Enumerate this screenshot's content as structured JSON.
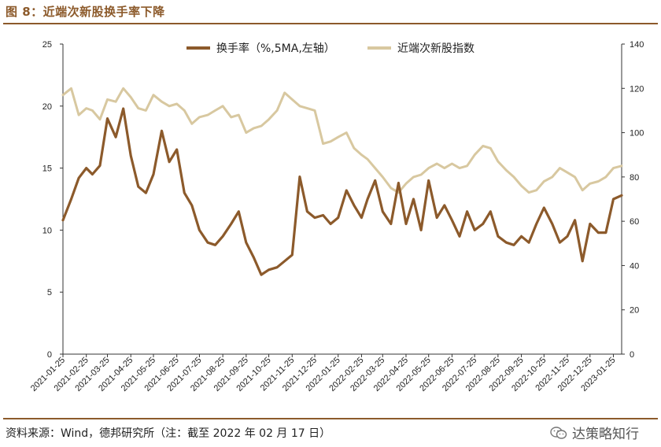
{
  "header": {
    "title": "图 8：近端次新股换手率下降"
  },
  "footer": {
    "source": "资料来源：Wind，德邦研究所（注：截至 2022 年 02 月 17 日）",
    "watermark": "达策略知行"
  },
  "colors": {
    "turnover": "#8c5a2b",
    "index": "#d8c8a0",
    "rule": "#8c5a2b"
  },
  "chart_data": {
    "type": "line",
    "legend_position": "top",
    "grid": false,
    "x_tick_labels": [
      "2021-01-25",
      "2021-02-25",
      "2021-03-25",
      "2021-04-25",
      "2021-05-25",
      "2021-06-25",
      "2021-07-25",
      "2021-08-25",
      "2021-09-25",
      "2021-10-25",
      "2021-11-25",
      "2021-12-25",
      "2022-01-25",
      "2022-02-25",
      "2022-03-25",
      "2022-04-25",
      "2022-05-25",
      "2022-06-25",
      "2022-07-25",
      "2022-08-25",
      "2022-09-25",
      "2022-10-25",
      "2022-11-25",
      "2022-12-25",
      "2023-01-25"
    ],
    "y_left": {
      "min": 0,
      "max": 25,
      "ticks": [
        "0",
        "5",
        "10",
        "15",
        "20",
        "25"
      ]
    },
    "y_right": {
      "min": 0,
      "max": 140,
      "ticks": [
        "0",
        "20",
        "40",
        "60",
        "80",
        "100",
        "120",
        "140"
      ]
    },
    "series": [
      {
        "name": "换手率（%,5MA,左轴）",
        "axis": "left",
        "color": "#8c5a2b",
        "x": [
          "2021-01-25",
          "2021-02-05",
          "2021-02-15",
          "2021-02-25",
          "2021-03-05",
          "2021-03-15",
          "2021-03-25",
          "2021-04-05",
          "2021-04-15",
          "2021-04-25",
          "2021-05-05",
          "2021-05-15",
          "2021-05-25",
          "2021-06-05",
          "2021-06-15",
          "2021-06-25",
          "2021-07-05",
          "2021-07-15",
          "2021-07-25",
          "2021-08-05",
          "2021-08-15",
          "2021-08-25",
          "2021-09-05",
          "2021-09-15",
          "2021-09-25",
          "2021-10-05",
          "2021-10-15",
          "2021-10-25",
          "2021-11-05",
          "2021-11-15",
          "2021-11-25",
          "2021-12-05",
          "2021-12-15",
          "2021-12-25",
          "2022-01-05",
          "2022-01-15",
          "2022-01-25",
          "2022-02-05",
          "2022-02-15",
          "2022-02-25",
          "2022-03-05",
          "2022-03-15",
          "2022-03-25",
          "2022-04-05",
          "2022-04-15",
          "2022-04-25",
          "2022-05-05",
          "2022-05-15",
          "2022-05-25",
          "2022-06-05",
          "2022-06-15",
          "2022-06-25",
          "2022-07-05",
          "2022-07-15",
          "2022-07-25",
          "2022-08-05",
          "2022-08-15",
          "2022-08-25",
          "2022-09-05",
          "2022-09-15",
          "2022-09-25",
          "2022-10-05",
          "2022-10-15",
          "2022-10-25",
          "2022-11-05",
          "2022-11-15",
          "2022-11-25",
          "2022-12-05",
          "2022-12-15",
          "2022-12-25",
          "2023-01-05",
          "2023-01-15",
          "2023-01-25",
          "2023-02-05"
        ],
        "values": [
          10.8,
          12.5,
          14.2,
          15.0,
          14.5,
          15.2,
          19.0,
          17.5,
          19.8,
          16.0,
          13.5,
          13.0,
          14.5,
          18.0,
          15.5,
          16.5,
          13.0,
          12.0,
          10.0,
          9.0,
          8.8,
          9.5,
          10.5,
          11.5,
          9.0,
          7.8,
          6.4,
          6.8,
          7.0,
          7.5,
          8.0,
          14.3,
          11.5,
          11.0,
          11.2,
          10.5,
          11.0,
          13.2,
          12.0,
          11.0,
          12.5,
          14.0,
          11.5,
          10.5,
          13.8,
          10.5,
          12.5,
          10.0,
          14.0,
          11.0,
          12.0,
          10.8,
          9.5,
          11.5,
          10.0,
          10.5,
          11.5,
          9.5,
          9.0,
          8.8,
          9.5,
          9.0,
          10.5,
          11.8,
          10.5,
          9.0,
          9.5,
          10.8,
          7.5,
          10.5,
          9.8,
          9.8,
          12.5,
          12.8
        ]
      },
      {
        "name": "近端次新股指数",
        "axis": "right",
        "color": "#d8c8a0",
        "x": [
          "2021-01-25",
          "2021-02-05",
          "2021-02-15",
          "2021-02-25",
          "2021-03-05",
          "2021-03-15",
          "2021-03-25",
          "2021-04-05",
          "2021-04-15",
          "2021-04-25",
          "2021-05-05",
          "2021-05-15",
          "2021-05-25",
          "2021-06-05",
          "2021-06-15",
          "2021-06-25",
          "2021-07-05",
          "2021-07-15",
          "2021-07-25",
          "2021-08-05",
          "2021-08-15",
          "2021-08-25",
          "2021-09-05",
          "2021-09-15",
          "2021-09-25",
          "2021-10-05",
          "2021-10-15",
          "2021-10-25",
          "2021-11-05",
          "2021-11-15",
          "2021-11-25",
          "2021-12-05",
          "2021-12-15",
          "2021-12-25",
          "2022-01-05",
          "2022-01-15",
          "2022-01-25",
          "2022-02-05",
          "2022-02-15",
          "2022-02-25",
          "2022-03-05",
          "2022-03-15",
          "2022-03-25",
          "2022-04-05",
          "2022-04-15",
          "2022-04-25",
          "2022-05-05",
          "2022-05-15",
          "2022-05-25",
          "2022-06-05",
          "2022-06-15",
          "2022-06-25",
          "2022-07-05",
          "2022-07-15",
          "2022-07-25",
          "2022-08-05",
          "2022-08-15",
          "2022-08-25",
          "2022-09-05",
          "2022-09-15",
          "2022-09-25",
          "2022-10-05",
          "2022-10-15",
          "2022-10-25",
          "2022-11-05",
          "2022-11-15",
          "2022-11-25",
          "2022-12-05",
          "2022-12-15",
          "2022-12-25",
          "2023-01-05",
          "2023-01-15",
          "2023-01-25",
          "2023-02-05"
        ],
        "values": [
          117,
          120,
          108,
          111,
          110,
          106,
          115,
          114,
          120,
          116,
          111,
          110,
          117,
          114,
          112,
          113,
          110,
          104,
          107,
          108,
          110,
          112,
          107,
          108,
          100,
          102,
          103,
          106,
          110,
          118,
          115,
          112,
          111,
          110,
          95,
          96,
          98,
          100,
          93,
          90,
          88,
          84,
          80,
          75,
          73,
          77,
          80,
          81,
          84,
          86,
          84,
          86,
          84,
          85,
          90,
          94,
          93,
          87,
          83,
          80,
          76,
          73,
          74,
          78,
          80,
          84,
          82,
          80,
          74,
          77,
          78,
          80,
          84,
          85
        ]
      }
    ]
  }
}
